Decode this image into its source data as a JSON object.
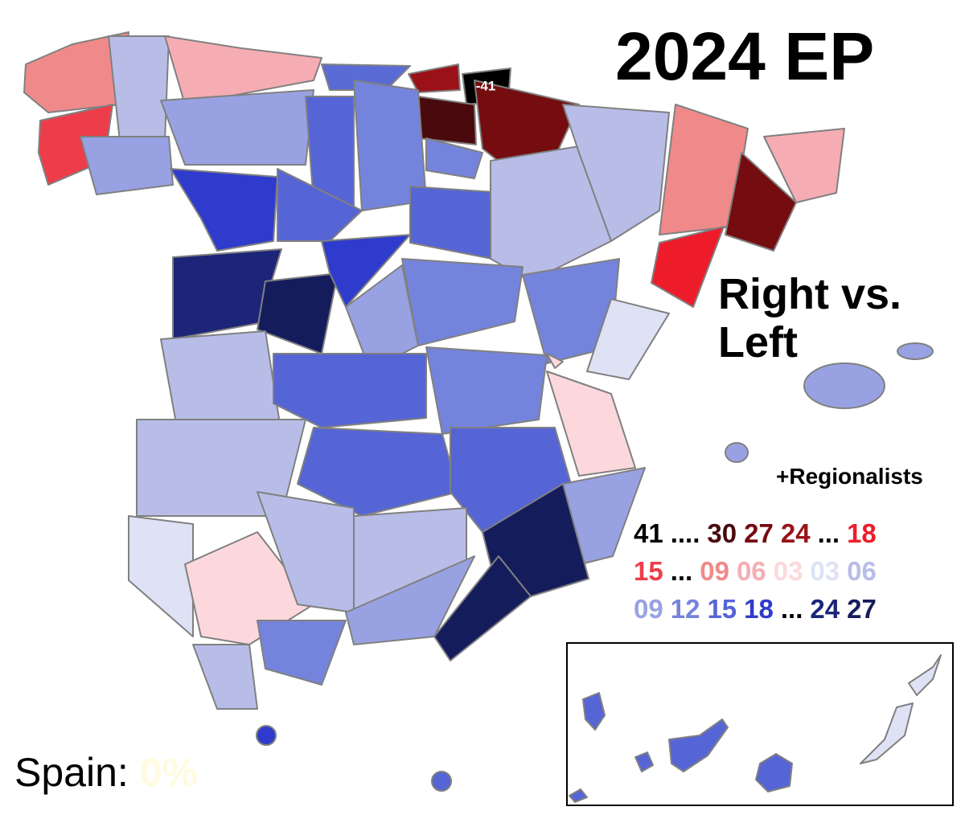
{
  "title": "2024 EP",
  "subtitle": [
    "Right vs.",
    "Left"
  ],
  "map_label": "-41",
  "legend": {
    "heading": "+Regionalists",
    "rows": [
      [
        {
          "text": "41",
          "color": "#000000"
        },
        {
          "text": "....",
          "color": "#000000"
        },
        {
          "text": "30",
          "color": "#4a0a0d"
        },
        {
          "text": "27",
          "color": "#740c10"
        },
        {
          "text": "24",
          "color": "#9a1218"
        },
        {
          "text": "...",
          "color": "#000000"
        },
        {
          "text": "18",
          "color": "#ee1c2a"
        }
      ],
      [
        {
          "text": "15",
          "color": "#ee3d4a"
        },
        {
          "text": "...",
          "color": "#000000"
        },
        {
          "text": "09",
          "color": "#f08a8a"
        },
        {
          "text": "06",
          "color": "#f5adb3"
        },
        {
          "text": "03",
          "color": "#fcd8dc"
        },
        {
          "text": "03",
          "color": "#dfe2f5"
        },
        {
          "text": "06",
          "color": "#b8bde8"
        }
      ],
      [
        {
          "text": "09",
          "color": "#98a2e2"
        },
        {
          "text": "12",
          "color": "#7484dc"
        },
        {
          "text": "15",
          "color": "#5565d6"
        },
        {
          "text": "18",
          "color": "#2f3bcc"
        },
        {
          "text": "...",
          "color": "#000000"
        },
        {
          "text": "24",
          "color": "#1c2578"
        },
        {
          "text": "27",
          "color": "#151c5c"
        }
      ]
    ]
  },
  "summary": {
    "label": "Spain:",
    "value": "0%",
    "value_color": "#fffbe0"
  }
}
